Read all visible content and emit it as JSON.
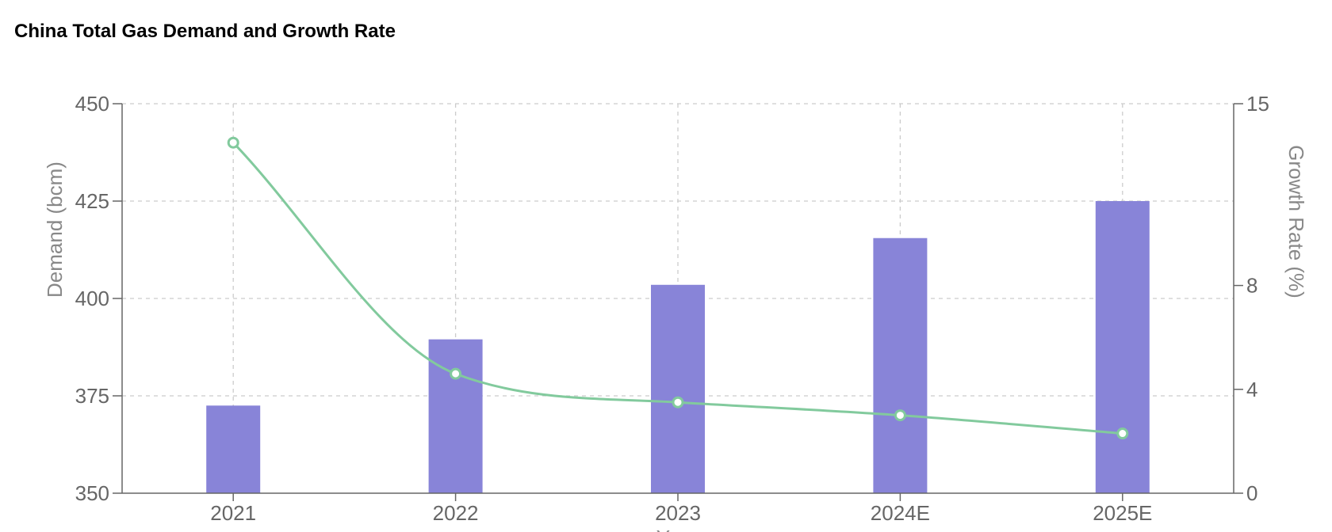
{
  "chart_data": {
    "type": "bar",
    "title": "China Total Gas Demand and Growth Rate",
    "xlabel": "Year",
    "ylabel": "Demand (bcm)",
    "y2label": "Growth Rate (%)",
    "categories": [
      "2021",
      "2022",
      "2023",
      "2024E",
      "2025E"
    ],
    "series": [
      {
        "type": "bar",
        "axis": "left",
        "values": [
          372.5,
          389.5,
          403.5,
          415.5,
          425
        ]
      },
      {
        "type": "line",
        "axis": "right",
        "values": [
          13.5,
          4.6,
          3.5,
          3.0,
          2.3
        ]
      }
    ],
    "ylim": [
      350,
      450
    ],
    "yticks": [
      350,
      375,
      400,
      425,
      450
    ],
    "y2lim": [
      0,
      15
    ],
    "y2ticks": [
      0,
      4,
      8,
      15
    ],
    "grid": true,
    "colors": {
      "bar": "#8884d8",
      "line": "#82ca9d",
      "grid": "#cccccc",
      "axis": "#666666",
      "tick_text": "#666666",
      "axis_label": "#888888"
    }
  }
}
